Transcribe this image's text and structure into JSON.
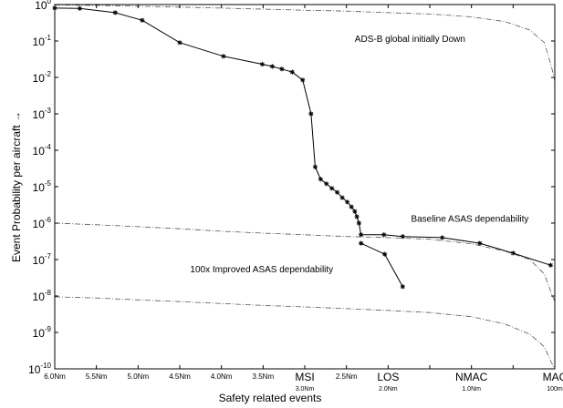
{
  "chart_data": {
    "type": "line",
    "title": "",
    "xlabel": "Safety related events",
    "ylabel": "Event Probability per aircraft →",
    "yscale": "log",
    "ylim": [
      1e-10,
      1
    ],
    "grid": false,
    "x_ticks": [
      {
        "x": 0,
        "label": "6.0Nm"
      },
      {
        "x": 1,
        "label": "5.5Nm"
      },
      {
        "x": 2,
        "label": "5.0Nm"
      },
      {
        "x": 3,
        "label": "4.5Nm"
      },
      {
        "x": 4,
        "label": "4.0Nm"
      },
      {
        "x": 5,
        "label": "3.5Nm"
      },
      {
        "x": 6,
        "label": "MSI",
        "sub": "3.0Nm"
      },
      {
        "x": 7,
        "label": "2.5Nm"
      },
      {
        "x": 8,
        "label": "LOS",
        "sub": "2.0Nm"
      },
      {
        "x": 9,
        "label": ""
      },
      {
        "x": 10,
        "label": "NMAC",
        "sub": "1.0Nm"
      },
      {
        "x": 11,
        "label": ""
      },
      {
        "x": 12,
        "label": "MAC",
        "sub": "100m"
      }
    ],
    "y_ticks": [
      {
        "value": 1,
        "base": "10",
        "exp": "0"
      },
      {
        "value": 0.1,
        "base": "10",
        "exp": "-1"
      },
      {
        "value": 0.01,
        "base": "10",
        "exp": "-2"
      },
      {
        "value": 0.001,
        "base": "10",
        "exp": "-3"
      },
      {
        "value": 0.0001,
        "base": "10",
        "exp": "-4"
      },
      {
        "value": 1e-05,
        "base": "10",
        "exp": "-5"
      },
      {
        "value": 1e-06,
        "base": "10",
        "exp": "-6"
      },
      {
        "value": 1e-07,
        "base": "10",
        "exp": "-7"
      },
      {
        "value": 1e-08,
        "base": "10",
        "exp": "-8"
      },
      {
        "value": 1e-09,
        "base": "10",
        "exp": "-9"
      },
      {
        "value": 1e-10,
        "base": "10",
        "exp": "-10"
      }
    ],
    "series": [
      {
        "style": "solid-star",
        "color": "#000000",
        "points": [
          [
            0.0,
            0.8
          ],
          [
            0.6,
            0.78
          ],
          [
            1.45,
            0.6
          ],
          [
            2.1,
            0.37
          ],
          [
            3.0,
            0.09
          ],
          [
            4.05,
            0.038
          ],
          [
            4.98,
            0.023
          ],
          [
            5.22,
            0.02
          ],
          [
            5.45,
            0.017
          ],
          [
            5.7,
            0.014
          ],
          [
            5.95,
            0.0085
          ],
          [
            6.15,
            0.001
          ],
          [
            6.25,
            3.5e-05
          ],
          [
            6.38,
            1.6e-05
          ],
          [
            6.52,
            1.2e-05
          ],
          [
            6.65,
            9e-06
          ],
          [
            6.78,
            7e-06
          ],
          [
            6.9,
            5e-06
          ],
          [
            7.02,
            3.8e-06
          ],
          [
            7.12,
            2.8e-06
          ],
          [
            7.2,
            2.1e-06
          ],
          [
            7.25,
            1.5e-06
          ],
          [
            7.3,
            1e-06
          ],
          [
            7.35,
            4.8e-07
          ],
          [
            7.9,
            4.8e-07
          ],
          [
            8.35,
            4.3e-07
          ],
          [
            9.3,
            4e-07
          ],
          [
            10.2,
            2.8e-07
          ],
          [
            11.0,
            1.5e-07
          ],
          [
            11.9,
            7e-08
          ]
        ]
      },
      {
        "style": "solid-star",
        "color": "#000000",
        "points": [
          [
            7.35,
            2.8e-07
          ],
          [
            7.92,
            1.4e-07
          ],
          [
            8.35,
            1.8e-08
          ]
        ]
      },
      {
        "style": "dashdot",
        "color": "#555555",
        "points": [
          [
            0.0,
            0.98
          ],
          [
            1.0,
            0.95
          ],
          [
            2.0,
            0.9
          ],
          [
            3.0,
            0.85
          ],
          [
            4.0,
            0.8
          ],
          [
            5.0,
            0.75
          ],
          [
            6.0,
            0.7
          ],
          [
            7.0,
            0.66
          ],
          [
            8.0,
            0.6
          ],
          [
            9.0,
            0.55
          ],
          [
            10.0,
            0.46
          ],
          [
            10.8,
            0.34
          ],
          [
            11.4,
            0.2
          ],
          [
            11.75,
            0.09
          ],
          [
            11.92,
            0.02
          ],
          [
            12.0,
            0.008
          ]
        ]
      },
      {
        "style": "dashdot",
        "color": "#555555",
        "points": [
          [
            0.0,
            1e-06
          ],
          [
            1.0,
            9e-07
          ],
          [
            2.0,
            8e-07
          ],
          [
            3.0,
            7e-07
          ],
          [
            4.0,
            6e-07
          ],
          [
            5.0,
            5.3e-07
          ],
          [
            6.0,
            4.8e-07
          ],
          [
            7.0,
            4.3e-07
          ],
          [
            8.0,
            4e-07
          ],
          [
            9.0,
            3.6e-07
          ],
          [
            10.0,
            2.7e-07
          ],
          [
            10.8,
            1.7e-07
          ],
          [
            11.4,
            1e-07
          ],
          [
            11.75,
            4e-08
          ],
          [
            11.92,
            1.2e-08
          ],
          [
            12.0,
            7e-09
          ]
        ]
      },
      {
        "style": "dashdot",
        "color": "#555555",
        "points": [
          [
            0.0,
            9.5e-09
          ],
          [
            1.0,
            8.8e-09
          ],
          [
            2.0,
            7.8e-09
          ],
          [
            3.0,
            7e-09
          ],
          [
            4.0,
            6.2e-09
          ],
          [
            5.0,
            5.5e-09
          ],
          [
            6.0,
            5e-09
          ],
          [
            7.0,
            4.5e-09
          ],
          [
            8.0,
            4e-09
          ],
          [
            9.0,
            3.5e-09
          ],
          [
            10.0,
            2.7e-09
          ],
          [
            10.8,
            1.7e-09
          ],
          [
            11.4,
            9e-10
          ],
          [
            11.75,
            4e-10
          ],
          [
            11.92,
            1.5e-10
          ],
          [
            12.0,
            1e-10
          ]
        ]
      }
    ],
    "annotations": [
      {
        "text": "ADS-B global initially Down",
        "x": 7.2,
        "y": 0.095
      },
      {
        "text": "Baseline ASAS dependability",
        "x": 8.55,
        "y": 1.1e-06
      },
      {
        "text": "100x Improved ASAS dependability",
        "x": 3.25,
        "y": 4.5e-08
      }
    ]
  }
}
